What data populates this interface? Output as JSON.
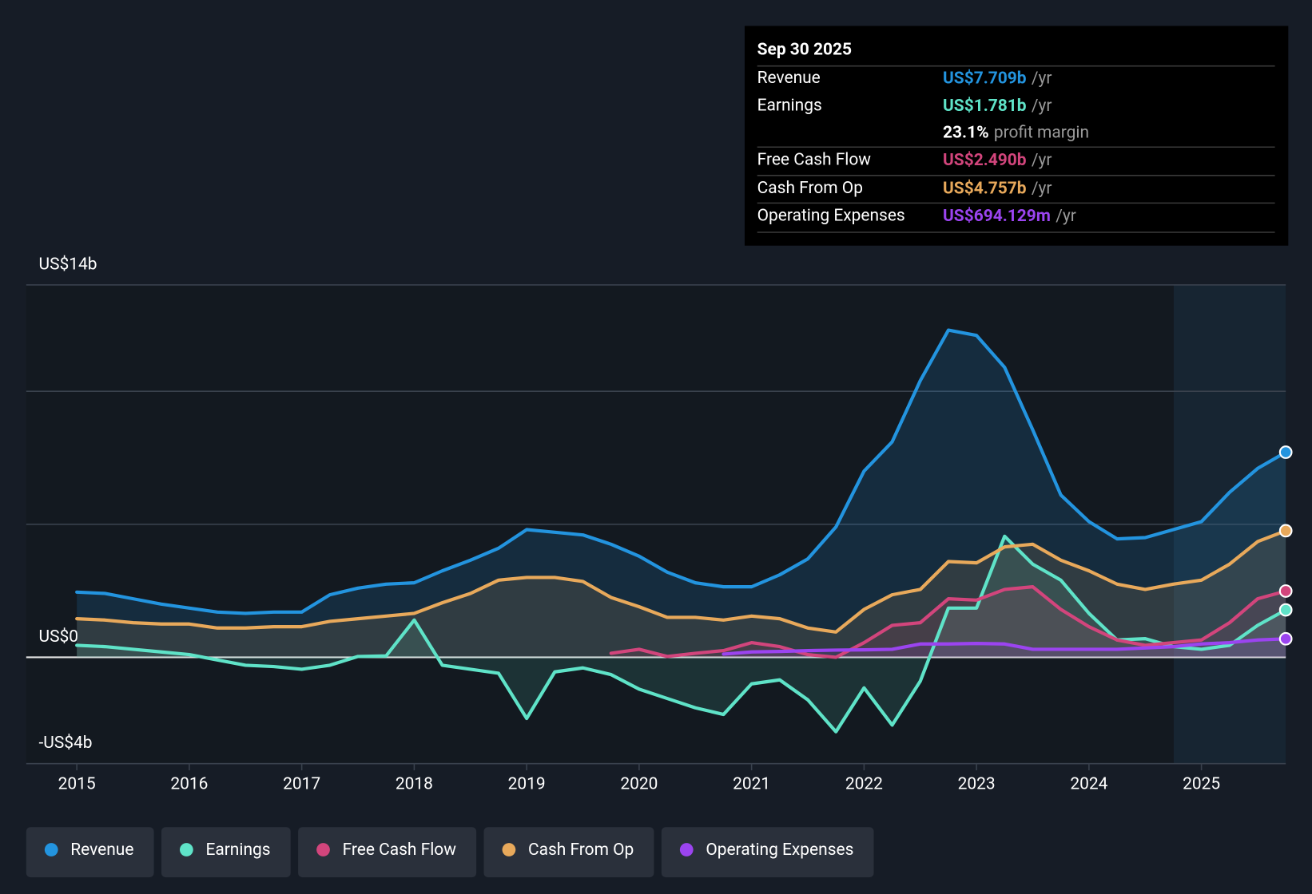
{
  "chart_data": {
    "type": "line",
    "x": [
      2015,
      2015.25,
      2015.5,
      2015.75,
      2016,
      2016.25,
      2016.5,
      2016.75,
      2017,
      2017.25,
      2017.5,
      2017.75,
      2018,
      2018.25,
      2018.5,
      2018.75,
      2019,
      2019.25,
      2019.5,
      2019.75,
      2020,
      2020.25,
      2020.5,
      2020.75,
      2021,
      2021.25,
      2021.5,
      2021.75,
      2022,
      2022.25,
      2022.5,
      2022.75,
      2023,
      2023.25,
      2023.5,
      2023.75,
      2024,
      2024.25,
      2024.5,
      2024.75,
      2025,
      2025.25,
      2025.5,
      2025.75
    ],
    "xlim": [
      2014.55,
      2025.75
    ],
    "xticks": [
      2015,
      2016,
      2017,
      2018,
      2019,
      2020,
      2021,
      2022,
      2023,
      2024,
      2025
    ],
    "ylim": [
      -4,
      14
    ],
    "yticks": [
      {
        "value": 14,
        "label": "US$14b"
      },
      {
        "value": 10,
        "label": null
      },
      {
        "value": 5,
        "label": null
      },
      {
        "value": 0,
        "label": "US$0"
      },
      {
        "value": -4,
        "label": "-US$4b"
      }
    ],
    "grid": true,
    "series": [
      {
        "name": "Revenue",
        "color": "#2394df",
        "values": [
          2.45,
          2.4,
          2.2,
          2.0,
          1.85,
          1.7,
          1.65,
          1.7,
          1.7,
          2.35,
          2.6,
          2.75,
          2.8,
          3.25,
          3.65,
          4.1,
          4.8,
          4.7,
          4.6,
          4.25,
          3.8,
          3.2,
          2.8,
          2.65,
          2.65,
          3.1,
          3.7,
          4.9,
          7.0,
          8.1,
          10.4,
          12.3,
          12.1,
          10.9,
          8.55,
          6.1,
          5.1,
          4.45,
          4.5,
          4.8,
          5.1,
          6.2,
          7.1,
          7.709
        ]
      },
      {
        "name": "Earnings",
        "color": "#5fe3c8",
        "values": [
          0.45,
          0.4,
          0.3,
          0.2,
          0.1,
          -0.1,
          -0.3,
          -0.35,
          -0.45,
          -0.3,
          0.03,
          0.05,
          1.4,
          -0.3,
          -0.45,
          -0.6,
          -2.3,
          -0.55,
          -0.4,
          -0.65,
          -1.2,
          -1.55,
          -1.9,
          -2.15,
          -1.0,
          -0.85,
          -1.6,
          -2.8,
          -1.15,
          -2.55,
          -0.9,
          1.85,
          1.85,
          4.55,
          3.5,
          2.9,
          1.65,
          0.65,
          0.7,
          0.4,
          0.3,
          0.45,
          1.2,
          1.781
        ]
      },
      {
        "name": "Free Cash Flow",
        "color": "#d2457c",
        "values": [
          null,
          null,
          null,
          null,
          null,
          null,
          null,
          null,
          null,
          null,
          null,
          null,
          null,
          null,
          null,
          null,
          null,
          null,
          null,
          0.15,
          0.3,
          0.03,
          0.15,
          0.25,
          0.55,
          0.4,
          0.1,
          0.0,
          0.55,
          1.2,
          1.3,
          2.2,
          2.15,
          2.55,
          2.65,
          1.8,
          1.15,
          0.65,
          0.45,
          0.55,
          0.65,
          1.3,
          2.2,
          2.49
        ]
      },
      {
        "name": "Cash From Op",
        "color": "#e8a95b",
        "values": [
          1.45,
          1.4,
          1.3,
          1.25,
          1.25,
          1.1,
          1.1,
          1.15,
          1.15,
          1.35,
          1.45,
          1.55,
          1.65,
          2.05,
          2.4,
          2.9,
          3.0,
          3.0,
          2.85,
          2.25,
          1.9,
          1.5,
          1.5,
          1.4,
          1.55,
          1.45,
          1.1,
          0.95,
          1.8,
          2.35,
          2.55,
          3.6,
          3.55,
          4.15,
          4.25,
          3.65,
          3.25,
          2.75,
          2.55,
          2.75,
          2.9,
          3.5,
          4.35,
          4.757
        ]
      },
      {
        "name": "Operating Expenses",
        "color": "#9b44f0",
        "values": [
          null,
          null,
          null,
          null,
          null,
          null,
          null,
          null,
          null,
          null,
          null,
          null,
          null,
          null,
          null,
          null,
          null,
          null,
          null,
          null,
          null,
          null,
          null,
          0.12,
          0.2,
          0.22,
          0.25,
          0.27,
          0.28,
          0.3,
          0.5,
          0.5,
          0.52,
          0.5,
          0.3,
          0.3,
          0.3,
          0.3,
          0.35,
          0.4,
          0.5,
          0.55,
          0.65,
          0.694
        ]
      }
    ]
  },
  "tooltip": {
    "date": "Sep 30 2025",
    "rows": [
      {
        "label": "Revenue",
        "value": "US$7.709b",
        "unit": "/yr",
        "color": "#2394df"
      },
      {
        "label": "Earnings",
        "value": "US$1.781b",
        "unit": "/yr",
        "color": "#5fe3c8"
      },
      {
        "label": null,
        "value": "23.1%",
        "unit": "profit margin",
        "color": "#ffffff"
      },
      {
        "label": "Free Cash Flow",
        "value": "US$2.490b",
        "unit": "/yr",
        "color": "#d2457c"
      },
      {
        "label": "Cash From Op",
        "value": "US$4.757b",
        "unit": "/yr",
        "color": "#e8a95b"
      },
      {
        "label": "Operating Expenses",
        "value": "US$694.129m",
        "unit": "/yr",
        "color": "#9b44f0"
      }
    ]
  }
}
